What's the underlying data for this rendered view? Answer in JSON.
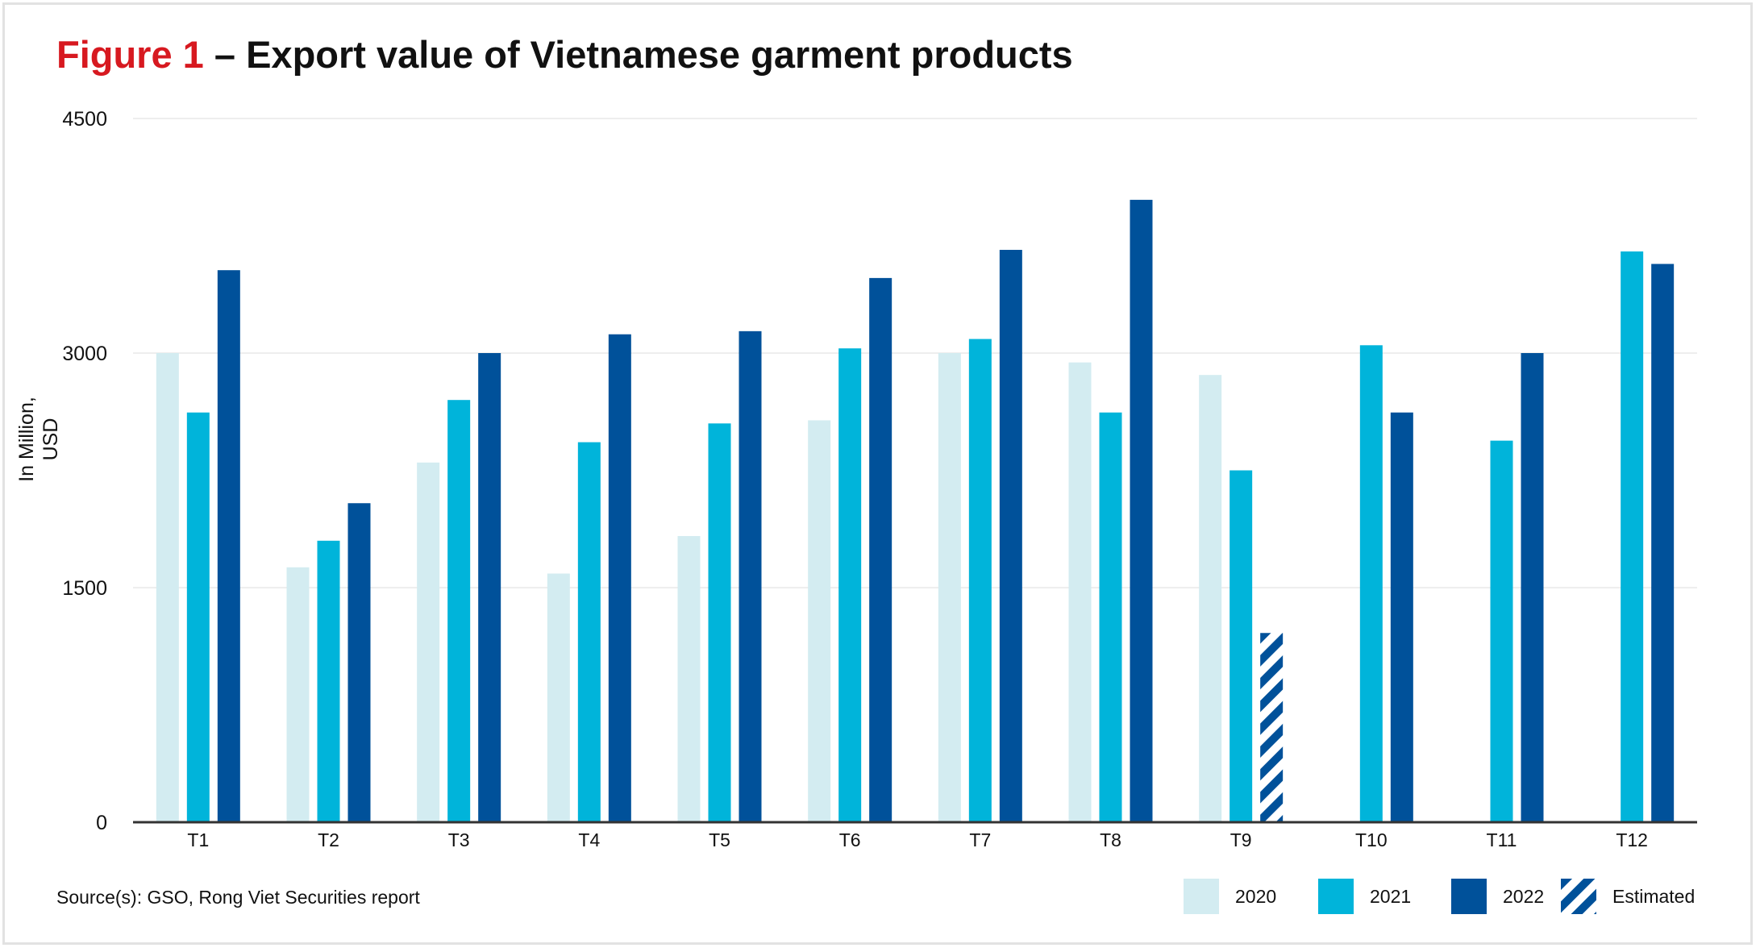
{
  "title": {
    "prefix": "Figure 1",
    "text": " – Export value of Vietnamese garment products"
  },
  "source": "Source(s): GSO, Rong Viet Securities report",
  "colors": {
    "s2020": "#d3ecf1",
    "s2021": "#00b4da",
    "s2022": "#00519a",
    "estimated": "#00519a",
    "grid": "#e8e8e8",
    "axis": "#333333"
  },
  "chart_data": {
    "type": "bar",
    "title": "Figure 1 – Export value of Vietnamese garment products",
    "ylabel_lines": [
      "In Million,",
      "USD"
    ],
    "ylim": [
      0,
      4500
    ],
    "yticks": [
      0,
      1500,
      3000,
      4500
    ],
    "grid": true,
    "legend_position": "bottom-right",
    "categories": [
      "T1",
      "T2",
      "T3",
      "T4",
      "T5",
      "T6",
      "T7",
      "T8",
      "T9",
      "T10",
      "T11",
      "T12"
    ],
    "series": [
      {
        "name": "2020",
        "color": "#d3ecf1",
        "values": [
          3000,
          1630,
          2300,
          1590,
          1830,
          2570,
          3000,
          2940,
          2860,
          null,
          null,
          null
        ]
      },
      {
        "name": "2021",
        "color": "#00b4da",
        "values": [
          2620,
          1800,
          2700,
          2430,
          2550,
          3030,
          3090,
          2620,
          2250,
          3050,
          2440,
          3650
        ]
      },
      {
        "name": "2022",
        "color": "#00519a",
        "values": [
          3530,
          2040,
          3000,
          3120,
          3140,
          3480,
          3660,
          3980,
          null,
          2620,
          3000,
          3570
        ]
      },
      {
        "name": "Estimated",
        "pattern": "hatched",
        "values": [
          null,
          null,
          null,
          null,
          null,
          null,
          null,
          null,
          1210,
          null,
          null,
          null
        ]
      }
    ]
  }
}
